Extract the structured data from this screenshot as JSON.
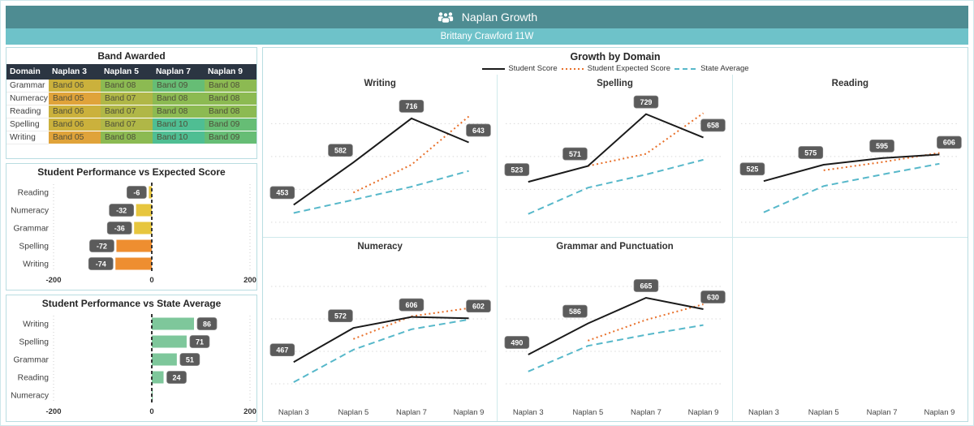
{
  "header": {
    "title": "Naplan Growth",
    "subtitle": "Brittany Crawford 11W",
    "header_color": "#4e8c92",
    "subheader_color": "#6ec2c9"
  },
  "band_table": {
    "title": "Band Awarded",
    "columns": [
      "Domain",
      "Naplan 3",
      "Naplan 5",
      "Naplan 7",
      "Naplan 9"
    ],
    "rows": [
      {
        "domain": "Grammar",
        "bands": [
          "Band 06",
          "Band 08",
          "Band 09",
          "Band 08"
        ]
      },
      {
        "domain": "Numeracy",
        "bands": [
          "Band 05",
          "Band 07",
          "Band 08",
          "Band 08"
        ]
      },
      {
        "domain": "Reading",
        "bands": [
          "Band 06",
          "Band 07",
          "Band 08",
          "Band 08"
        ]
      },
      {
        "domain": "Spelling",
        "bands": [
          "Band 06",
          "Band 07",
          "Band 10",
          "Band 09"
        ]
      },
      {
        "domain": "Writing",
        "bands": [
          "Band 05",
          "Band 08",
          "Band 10",
          "Band 09"
        ]
      }
    ],
    "band_colors": {
      "Band 05": "#e0a33a",
      "Band 06": "#cbb13c",
      "Band 07": "#b0b747",
      "Band 08": "#8cba52",
      "Band 09": "#66bd75",
      "Band 10": "#4fbe93"
    }
  },
  "chart_data": [
    {
      "id": "expected_diff",
      "type": "bar",
      "title": "Student Performance vs Expected Score",
      "orientation": "horizontal",
      "categories": [
        "Reading",
        "Numeracy",
        "Grammar",
        "Spelling",
        "Writing"
      ],
      "values": [
        -6,
        -32,
        -36,
        -72,
        -74
      ],
      "labels": [
        "-6",
        "-32",
        "-36",
        "-72",
        "-74"
      ],
      "bar_colors": [
        "#e7c63e",
        "#e7c63e",
        "#e7c63e",
        "#ee8e30",
        "#ee8e30"
      ],
      "xlim": [
        -200,
        200
      ],
      "xticks": [
        "-200",
        "0",
        "200"
      ],
      "zero_line": true,
      "grid": true
    },
    {
      "id": "state_diff",
      "type": "bar",
      "title": "Student Performance vs State Average",
      "orientation": "horizontal",
      "categories": [
        "Writing",
        "Spelling",
        "Grammar",
        "Reading",
        "Numeracy"
      ],
      "values": [
        86,
        71,
        51,
        24,
        2
      ],
      "labels": [
        "86",
        "71",
        "51",
        "24",
        ""
      ],
      "bar_colors": [
        "#7ec79b",
        "#7ec79b",
        "#7ec79b",
        "#7ec79b",
        "#7ec79b"
      ],
      "xlim": [
        -200,
        200
      ],
      "xticks": [
        "-200",
        "0",
        "200"
      ],
      "zero_line": true,
      "grid": true
    },
    {
      "id": "growth_by_domain",
      "type": "line",
      "title": "Growth by Domain",
      "x_categories": [
        "Naplan 3",
        "Naplan 5",
        "Naplan 7",
        "Naplan 9"
      ],
      "ylim": [
        370,
        780
      ],
      "gridlines": [
        400,
        500,
        600,
        700
      ],
      "legend": [
        {
          "label": "Student Score",
          "color": "#1a1a1a",
          "style": "solid"
        },
        {
          "label": "Student Expected Score",
          "color": "#e8702a",
          "style": "dotted"
        },
        {
          "label": "State Average",
          "color": "#57b8ca",
          "style": "dashed"
        }
      ],
      "panels": [
        {
          "title": "Writing",
          "empty": false,
          "series": {
            "student": [
              453,
              582,
              716,
              643
            ],
            "expected": [
              null,
              490,
              575,
              722
            ],
            "state": [
              428,
              468,
              508,
              556
            ]
          }
        },
        {
          "title": "Spelling",
          "empty": false,
          "series": {
            "student": [
              523,
              571,
              729,
              658
            ],
            "expected": [
              null,
              571,
              608,
              732
            ],
            "state": [
              425,
              505,
              545,
              590
            ]
          }
        },
        {
          "title": "Reading",
          "empty": false,
          "series": {
            "student": [
              525,
              575,
              595,
              606
            ],
            "expected": [
              null,
              558,
              583,
              611
            ],
            "state": [
              430,
              510,
              545,
              578
            ]
          }
        },
        {
          "title": "Numeracy",
          "empty": false,
          "series": {
            "student": [
              467,
              572,
              606,
              602
            ],
            "expected": [
              null,
              538,
              608,
              633
            ],
            "state": [
              405,
              505,
              568,
              598
            ]
          }
        },
        {
          "title": "Grammar and Punctuation",
          "empty": false,
          "series": {
            "student": [
              490,
              586,
              665,
              630
            ],
            "expected": [
              null,
              533,
              597,
              645
            ],
            "state": [
              438,
              517,
              551,
              581
            ]
          }
        },
        {
          "title": "",
          "empty": true,
          "series": {
            "student": [],
            "expected": [],
            "state": []
          }
        }
      ],
      "label_badge_color": "#5b5b5b",
      "gridline_color": "#d9d9d9"
    }
  ]
}
